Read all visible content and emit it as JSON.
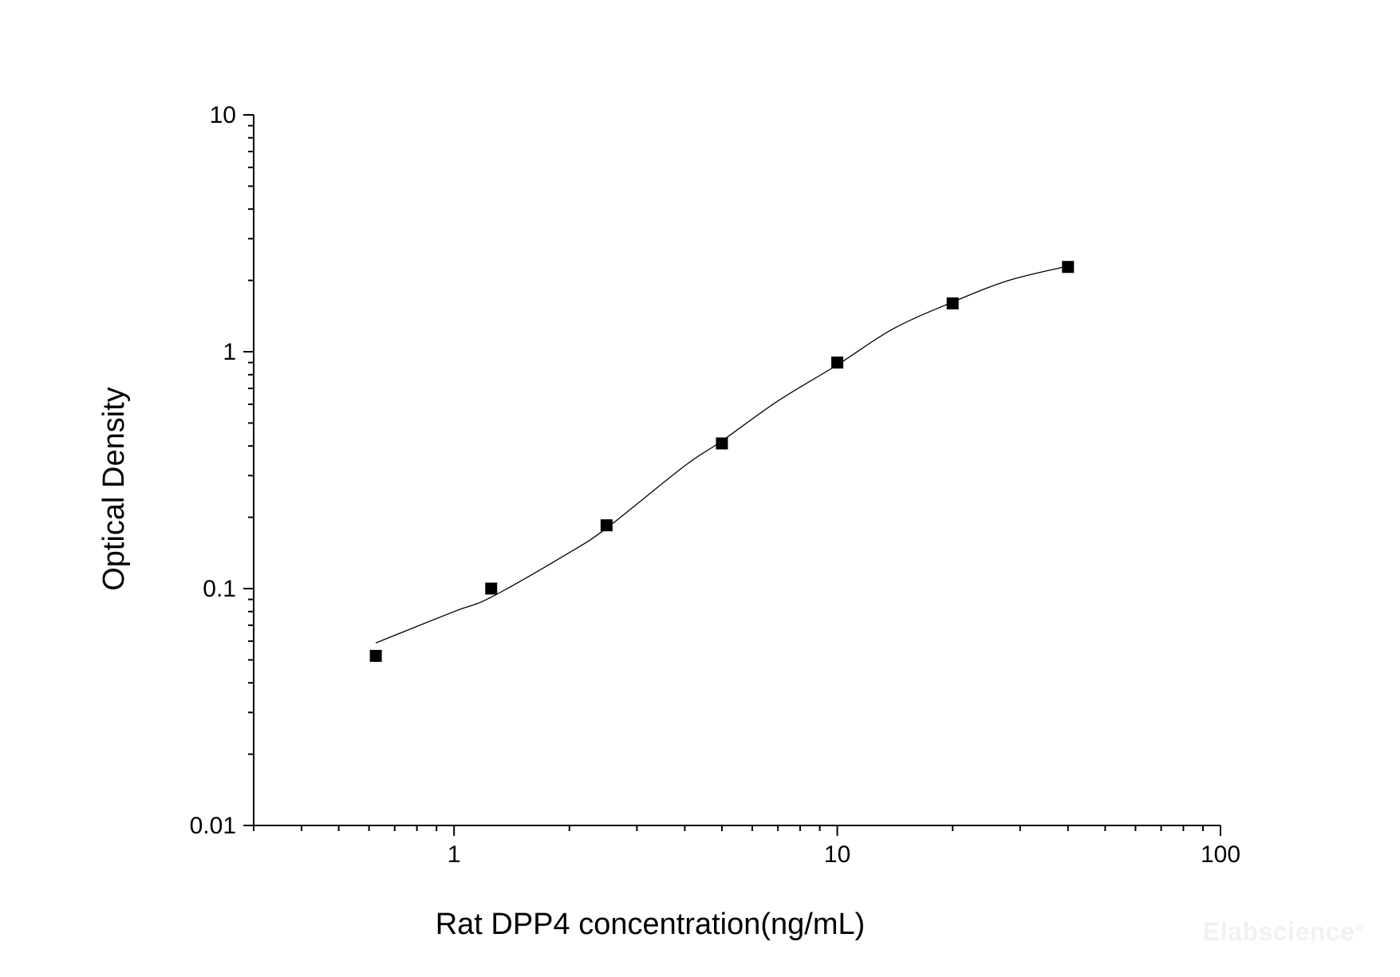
{
  "chart_data": {
    "type": "scatter",
    "title": "",
    "xlabel": "Rat DPP4 concentration(ng/mL)",
    "ylabel": "Optical Density",
    "x_scale": "log",
    "y_scale": "log",
    "xlim": [
      0.3,
      100
    ],
    "ylim": [
      0.01,
      10
    ],
    "x_ticks": [
      {
        "value": 1,
        "label": "1"
      },
      {
        "value": 10,
        "label": "10"
      },
      {
        "value": 100,
        "label": "100"
      }
    ],
    "y_ticks": [
      {
        "value": 0.01,
        "label": "0.01"
      },
      {
        "value": 0.1,
        "label": "0.1"
      },
      {
        "value": 1,
        "label": "1"
      },
      {
        "value": 10,
        "label": "10"
      }
    ],
    "grid": false,
    "legend": "none",
    "series": [
      {
        "x": [
          0.625,
          1.25,
          2.5,
          5,
          10,
          20,
          40
        ],
        "y": [
          0.052,
          0.1,
          0.185,
          0.41,
          0.9,
          1.6,
          2.28
        ],
        "marker": "square",
        "color": "#000000"
      }
    ],
    "fit_curve": {
      "color": "#000000",
      "x": [
        0.625,
        1,
        1.25,
        2,
        2.5,
        4,
        5,
        7,
        10,
        14,
        20,
        28,
        40
      ],
      "y": [
        0.059,
        0.08,
        0.092,
        0.142,
        0.18,
        0.33,
        0.42,
        0.62,
        0.88,
        1.25,
        1.62,
        2.0,
        2.3
      ]
    }
  },
  "watermark": {
    "text": "Elabscience",
    "mark": "®"
  }
}
